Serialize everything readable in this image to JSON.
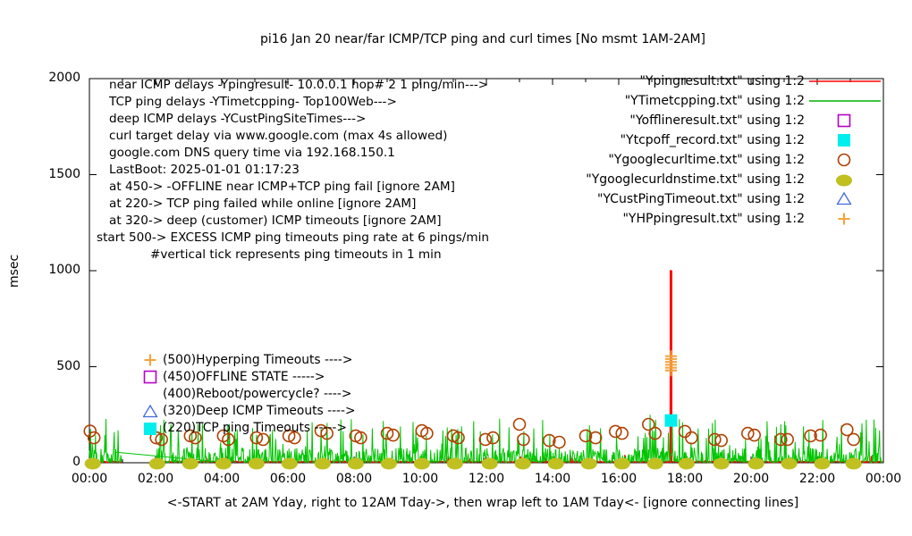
{
  "chart_data": {
    "type": "mixed",
    "title": "pi16 Jan 20  near/far ICMP/TCP ping and curl times [No msmt 1AM-2AM]",
    "xlabel": "<-START at 2AM Yday, right to 12AM Tday->, then wrap left to 1AM Tday<- [ignore connecting lines]",
    "ylabel": "msec",
    "x_axis": {
      "ticks": [
        "00:00",
        "02:00",
        "04:00",
        "06:00",
        "08:00",
        "10:00",
        "12:00",
        "14:00",
        "16:00",
        "18:00",
        "20:00",
        "22:00",
        "00:00"
      ],
      "range_hours": [
        0,
        24
      ],
      "minor_tick_every_hours": 1
    },
    "y_axis": {
      "ticks": [
        0,
        500,
        1000,
        1500,
        2000
      ],
      "range": [
        0,
        2000
      ]
    },
    "grid": "off",
    "legend_position": "top-right",
    "gap": {
      "from_hour": 1,
      "to_hour": 2,
      "reason": "No msmt 1AM-2AM"
    },
    "series": [
      {
        "file": "Ypingresult.txt",
        "desc": "near ICMP ping delay to 10.0.0.1",
        "style": "line",
        "color": "#ff0000",
        "seed": 1001,
        "baseline_ms": [
          2,
          8
        ],
        "spike": {
          "hour": 17.58,
          "ms": 1000,
          "stroke": 3
        }
      },
      {
        "file": "YTimetcpping.txt",
        "desc": "TCP ping delay Top100Web",
        "style": "line",
        "color": "#00c400",
        "seed": 20207,
        "spiky": true,
        "spike_ms_range": [
          8,
          230
        ],
        "forced_peaks": [
          [
            7.0,
            175
          ],
          [
            12.4,
            230
          ],
          [
            15.05,
            175
          ],
          [
            16.95,
            250
          ],
          [
            17.62,
            235
          ],
          [
            21.05,
            195
          ],
          [
            23.35,
            205
          ]
        ],
        "connector": [
          [
            0.78,
            55
          ],
          [
            3.98,
            4
          ]
        ]
      },
      {
        "file": "Yofflineresult.txt",
        "desc": "OFFLINE state marker (450)",
        "style": "points",
        "marker": "square-open",
        "color": "#b800c8",
        "points": []
      },
      {
        "file": "Ytcpoff_record.txt",
        "desc": "TCP ping failed while online (220)",
        "style": "points",
        "marker": "square-filled",
        "color": "#00eeee",
        "points": [
          [
            17.58,
            220
          ]
        ]
      },
      {
        "file": "Ygooglecurltime.txt",
        "desc": "curl www.google.com time",
        "style": "points",
        "marker": "circle-open",
        "color": "#b04000",
        "points": [
          [
            0.02,
            165
          ],
          [
            0.14,
            130
          ],
          [
            2.02,
            130
          ],
          [
            2.18,
            121
          ],
          [
            3.05,
            140
          ],
          [
            3.2,
            130
          ],
          [
            4.05,
            140
          ],
          [
            4.2,
            121
          ],
          [
            5.05,
            130
          ],
          [
            5.25,
            121
          ],
          [
            6.03,
            140
          ],
          [
            6.2,
            130
          ],
          [
            7.0,
            167
          ],
          [
            7.18,
            153
          ],
          [
            8.05,
            140
          ],
          [
            8.2,
            130
          ],
          [
            9.0,
            153
          ],
          [
            9.18,
            144
          ],
          [
            10.05,
            167
          ],
          [
            10.2,
            153
          ],
          [
            11.0,
            140
          ],
          [
            11.15,
            130
          ],
          [
            11.97,
            121
          ],
          [
            12.2,
            130
          ],
          [
            13.0,
            200
          ],
          [
            13.12,
            121
          ],
          [
            13.9,
            116
          ],
          [
            14.2,
            107
          ],
          [
            15.0,
            140
          ],
          [
            15.3,
            130
          ],
          [
            15.9,
            163
          ],
          [
            16.1,
            153
          ],
          [
            16.9,
            200
          ],
          [
            17.1,
            153
          ],
          [
            18.0,
            163
          ],
          [
            18.2,
            130
          ],
          [
            18.9,
            121
          ],
          [
            19.1,
            116
          ],
          [
            19.9,
            153
          ],
          [
            20.1,
            144
          ],
          [
            20.9,
            121
          ],
          [
            21.1,
            121
          ],
          [
            21.8,
            140
          ],
          [
            22.1,
            144
          ],
          [
            22.9,
            172
          ],
          [
            23.1,
            121
          ]
        ]
      },
      {
        "file": "Ygooglecurldnstime.txt",
        "desc": "google.com DNS query time via 192.168.150.1",
        "style": "points",
        "marker": "circle-filled",
        "color": "#c0c020",
        "points": [
          [
            0.1,
            0
          ],
          [
            2.05,
            0
          ],
          [
            3.05,
            0
          ],
          [
            4.05,
            0
          ],
          [
            5.05,
            0
          ],
          [
            6.05,
            0
          ],
          [
            7.05,
            0
          ],
          [
            8.05,
            0
          ],
          [
            9.05,
            0
          ],
          [
            10.05,
            0
          ],
          [
            11.05,
            0
          ],
          [
            12.1,
            0
          ],
          [
            13.1,
            0
          ],
          [
            14.1,
            0
          ],
          [
            15.1,
            0
          ],
          [
            16.1,
            0
          ],
          [
            17.1,
            0
          ],
          [
            18.05,
            0
          ],
          [
            19.1,
            0
          ],
          [
            20.15,
            0
          ],
          [
            21.15,
            0
          ],
          [
            22.15,
            0
          ],
          [
            23.1,
            0
          ]
        ]
      },
      {
        "file": "YCustPingTimeout.txt",
        "desc": "deep (customer) ICMP timeouts (320)",
        "style": "points",
        "marker": "triangle-open",
        "color": "#4169e1",
        "points": []
      },
      {
        "file": "YHPpingresult.txt",
        "desc": "EXCESS hyperping ICMP timeouts (from 500)",
        "style": "points",
        "marker": "plus",
        "color": "#f2a33c",
        "points": [
          [
            17.58,
            480
          ],
          [
            17.58,
            495
          ],
          [
            17.58,
            510
          ],
          [
            17.58,
            525
          ],
          [
            17.58,
            540
          ],
          [
            17.58,
            555
          ]
        ]
      }
    ]
  },
  "info_lines": [
    "near ICMP delays -Ypingresult- 10.0.0.1 hop# 2 1 ping/min--->",
    "TCP ping delays -YTimetcpping- Top100Web--->",
    "deep ICMP delays -YCustPingSiteTimes--->",
    "curl target delay via www.google.com (max 4s allowed)",
    "google.com DNS query time via 192.168.150.1",
    "LastBoot: 2025-01-01 01:17:23",
    "at 450-> -OFFLINE near ICMP+TCP ping fail [ignore 2AM]",
    "at 220-> TCP ping failed while online [ignore 2AM]",
    "at 320-> deep (customer) ICMP timeouts [ignore 2AM]",
    "start 500-> EXCESS ICMP ping timeouts ping rate at 6 pings/min",
    "#vertical tick represents ping timeouts in 1 min"
  ],
  "legend": [
    {
      "label": "\"Ypingresult.txt\" using 1:2",
      "marker": "line",
      "color": "#ff0000"
    },
    {
      "label": "\"YTimetcpping.txt\" using 1:2",
      "marker": "line",
      "color": "#00b000"
    },
    {
      "label": "\"Yofflineresult.txt\" using 1:2",
      "marker": "square-open",
      "color": "#b800c8"
    },
    {
      "label": "\"Ytcpoff_record.txt\" using 1:2",
      "marker": "square-filled",
      "color": "#00eeee"
    },
    {
      "label": "\"Ygooglecurltime.txt\" using 1:2",
      "marker": "circle-open",
      "color": "#b04000"
    },
    {
      "label": "\"Ygooglecurldnstime.txt\" using 1:2",
      "marker": "circle-filled",
      "color": "#c0c020"
    },
    {
      "label": "\"YCustPingTimeout.txt\" using 1:2",
      "marker": "triangle-open",
      "color": "#4169e1"
    },
    {
      "label": "\"YHPpingresult.txt\" using 1:2",
      "marker": "plus",
      "color": "#f2a33c"
    }
  ],
  "plot_labels": [
    {
      "text": "(500)Hyperping Timeouts ---->",
      "marker": "plus",
      "color": "#f2a33c"
    },
    {
      "text": "(450)OFFLINE STATE ----->",
      "marker": "square-open",
      "color": "#b800c8"
    },
    {
      "text": "(400)Reboot/powercycle? ---->",
      "marker": "none",
      "color": "#000000"
    },
    {
      "text": "(320)Deep ICMP Timeouts ---->",
      "marker": "triangle-open",
      "color": "#4169e1"
    },
    {
      "text": "(220)TCP ping Timeouts ----->",
      "marker": "square-filled",
      "color": "#00eeee"
    }
  ]
}
